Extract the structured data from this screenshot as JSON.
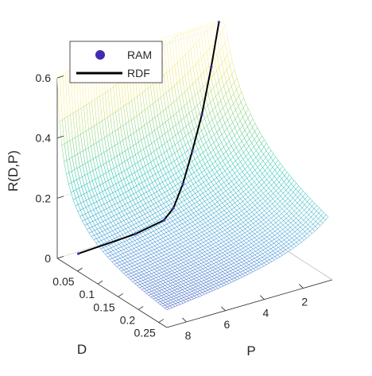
{
  "chart_data": {
    "type": "surface",
    "zlabel": "R(D,P)",
    "xlabel": "D",
    "ylabel": "P",
    "z_ticks": [
      "0",
      "0.2",
      "0.4",
      "0.6"
    ],
    "d_ticks": [
      "0.05",
      "0.1",
      "0.15",
      "0.2",
      "0.25"
    ],
    "p_ticks": [
      "2",
      "4",
      "6",
      "8"
    ],
    "zlim": [
      0,
      0.6
    ],
    "dlim": [
      0,
      0.27
    ],
    "plim": [
      0.5,
      9
    ],
    "grid": true,
    "legend_position": "top-left",
    "series": [
      {
        "name": "RAM",
        "marker": "filled-circle",
        "color": "#3f2cb0"
      },
      {
        "name": "RDF",
        "marker": "line",
        "color": "#000000"
      }
    ],
    "curve_points_rdf": [
      {
        "P": 0.6,
        "R": 0.62
      },
      {
        "P": 1.0,
        "R": 0.48
      },
      {
        "P": 1.5,
        "R": 0.33
      },
      {
        "P": 2.0,
        "R": 0.22
      },
      {
        "P": 2.5,
        "R": 0.12
      },
      {
        "P": 3.0,
        "R": 0.05
      },
      {
        "P": 3.5,
        "R": 0.02
      },
      {
        "P": 5.0,
        "R": 0.005
      },
      {
        "P": 8.0,
        "R": 0.0
      }
    ],
    "colormap": [
      "#3f2cb0",
      "#2f8fd6",
      "#17c2b4",
      "#7fd07c",
      "#f2e66a",
      "#fff7c8"
    ]
  }
}
